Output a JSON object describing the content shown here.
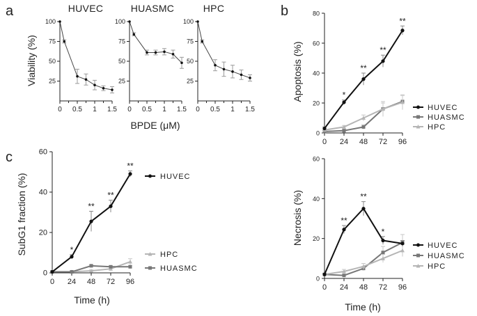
{
  "chart_data": [
    {
      "panel": "a",
      "type": "line",
      "ylabel": "Viability (%)",
      "xlabel": "BPDE (μM)",
      "ylim": [
        0,
        100
      ],
      "yticks": [
        "100",
        "75",
        "50",
        "25"
      ],
      "xlim": [
        0,
        1.5
      ],
      "xticks": [
        "0",
        "0.5",
        "1",
        "1.5"
      ],
      "x": [
        0,
        0.125,
        0.5,
        0.75,
        1.0,
        1.25,
        1.5
      ],
      "subplots": [
        {
          "title": "HUVEC",
          "values": [
            100,
            75,
            31,
            27,
            20,
            16,
            14
          ],
          "errors": [
            0,
            2,
            9,
            7,
            6,
            3,
            4
          ]
        },
        {
          "title": "HUASMC",
          "values": [
            100,
            84,
            61,
            61,
            62,
            59,
            48
          ],
          "errors": [
            0,
            2,
            3,
            3,
            4,
            5,
            7
          ]
        },
        {
          "title": "HPC",
          "values": [
            100,
            75,
            45,
            40,
            37,
            33,
            29
          ],
          "errors": [
            0,
            2,
            7,
            9,
            8,
            6,
            4
          ]
        }
      ]
    },
    {
      "panel": "b-top",
      "type": "line",
      "ylabel": "Apoptosis (%)",
      "ylim": [
        0,
        80
      ],
      "yticks": [
        "80",
        "60",
        "40",
        "20",
        "0"
      ],
      "x": [
        0,
        24,
        48,
        72,
        96
      ],
      "xticks": [
        "0",
        "24",
        "48",
        "72",
        "96"
      ],
      "series": [
        {
          "name": "HUVEC",
          "color": "#111111",
          "values": [
            3,
            20.5,
            36,
            48,
            68.5
          ],
          "errors": [
            1,
            1.5,
            4,
            4,
            3
          ]
        },
        {
          "name": "HUASMC",
          "color": "#777777",
          "values": [
            1,
            1.5,
            4,
            16,
            21
          ],
          "errors": [
            0.5,
            1,
            1.5,
            5,
            4
          ]
        },
        {
          "name": "HPC",
          "color": "#b5b5b5",
          "values": [
            2,
            4,
            10,
            16,
            20.5
          ],
          "errors": [
            0.5,
            1,
            2,
            4,
            5
          ]
        }
      ],
      "annotations": [
        {
          "x": 24,
          "text": "*"
        },
        {
          "x": 48,
          "text": "**"
        },
        {
          "x": 72,
          "text": "**"
        },
        {
          "x": 96,
          "text": "**"
        }
      ]
    },
    {
      "panel": "b-bottom",
      "type": "line",
      "ylabel": "Necrosis (%)",
      "xlabel": "Time (h)",
      "ylim": [
        0,
        60
      ],
      "yticks": [
        "60",
        "40",
        "20",
        "0"
      ],
      "x": [
        0,
        24,
        48,
        72,
        96
      ],
      "xticks": [
        "0",
        "24",
        "48",
        "72",
        "96"
      ],
      "series": [
        {
          "name": "HUVEC",
          "color": "#111111",
          "values": [
            2,
            24.5,
            35,
            19,
            17.5
          ],
          "errors": [
            0.5,
            2,
            3.5,
            2,
            1.5
          ]
        },
        {
          "name": "HUASMC",
          "color": "#777777",
          "values": [
            2,
            1.5,
            5,
            13,
            18
          ],
          "errors": [
            0.5,
            0.5,
            1,
            3,
            4
          ]
        },
        {
          "name": "HPC",
          "color": "#b5b5b5",
          "values": [
            2,
            3.5,
            6,
            10,
            14
          ],
          "errors": [
            0.5,
            1,
            1.5,
            2,
            3
          ]
        }
      ],
      "annotations": [
        {
          "x": 24,
          "text": "**"
        },
        {
          "x": 48,
          "text": "**"
        },
        {
          "x": 72,
          "text": "*"
        }
      ]
    },
    {
      "panel": "c",
      "type": "line",
      "ylabel": "SubG1 fraction (%)",
      "xlabel": "Time (h)",
      "ylim": [
        0,
        60
      ],
      "yticks": [
        "60",
        "40",
        "20",
        "0"
      ],
      "x": [
        0,
        24,
        48,
        72,
        96
      ],
      "xticks": [
        "0",
        "24",
        "48",
        "72",
        "96"
      ],
      "series": [
        {
          "name": "HUVEC",
          "color": "#111111",
          "values": [
            0.5,
            8,
            25.5,
            33,
            49
          ],
          "errors": [
            0.3,
            1,
            5,
            3,
            1.5
          ]
        },
        {
          "name": "HPC",
          "color": "#b5b5b5",
          "values": [
            0.5,
            0.5,
            1,
            2,
            5.5
          ],
          "errors": [
            0.2,
            0.3,
            0.5,
            1,
            1.5
          ]
        },
        {
          "name": "HUASMC",
          "color": "#777777",
          "values": [
            0.5,
            0.5,
            3.5,
            3,
            3
          ],
          "errors": [
            0.2,
            0.3,
            0.5,
            0.5,
            0.7
          ]
        }
      ],
      "annotations": [
        {
          "x": 24,
          "text": "*"
        },
        {
          "x": 48,
          "text": "**"
        },
        {
          "x": 72,
          "text": "**"
        },
        {
          "x": 96,
          "text": "**"
        }
      ]
    }
  ],
  "labels": {
    "panel_a": "a",
    "panel_b": "b",
    "panel_c": "c",
    "a_title_1": "HUVEC",
    "a_title_2": "HUASMC",
    "a_title_3": "HPC",
    "a_ylabel": "Viability (%)",
    "a_xlabel": "BPDE (μM)",
    "bt_ylabel": "Apoptosis (%)",
    "bb_ylabel": "Necrosis (%)",
    "bb_xlabel": "Time (h)",
    "c_ylabel": "SubG1 fraction (%)",
    "c_xlabel": "Time (h)",
    "bt_legend_1": "HUVEC",
    "bt_legend_2": "HUASMC",
    "bt_legend_3": "HPC",
    "bb_legend_1": "HUVEC",
    "bb_legend_2": "HUASMC",
    "bb_legend_3": "HPC",
    "c_legend_1": "HUVEC",
    "c_legend_2": "HPC",
    "c_legend_3": "HUASMC"
  }
}
